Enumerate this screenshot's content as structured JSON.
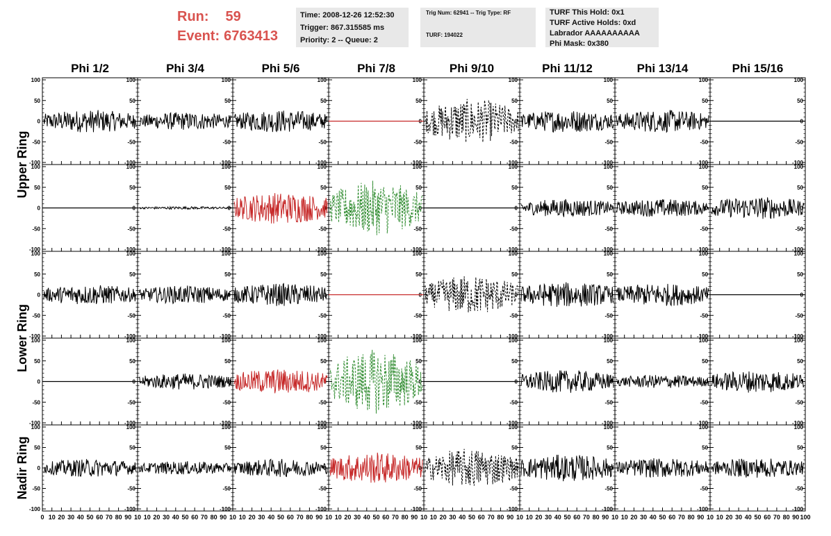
{
  "header": {
    "run_label": "Run:",
    "run_value": "59",
    "event_label": "Event:",
    "event_value": "6763413",
    "time_line": "Time: 2008-12-26 12:52:30",
    "trigger_line": "Trigger: 867.315585 ms",
    "priority_line": "Priority: 2 -- Queue: 2",
    "trig_line": "Trig Num: 62941 -- Trig Type: RF",
    "turf_line": "TURF: 194022",
    "turf_hold_line": "TURF This Hold: 0x1",
    "turf_active_line": "TURF Active Holds: 0xd",
    "labrador_line": "Labrador AAAAAAAAAA",
    "phimask_line": "Phi Mask: 0x380"
  },
  "colors": {
    "header_accent": "#d9534f",
    "trace_black": "#000000",
    "trace_red": "#c62828",
    "trace_green": "#2e8b2e",
    "infobox_bg": "#e8e8e8"
  },
  "chart_data": {
    "type": "line",
    "columns": [
      "Phi 1/2",
      "Phi 3/4",
      "Phi 5/6",
      "Phi 7/8",
      "Phi 9/10",
      "Phi 11/12",
      "Phi 13/14",
      "Phi 15/16"
    ],
    "rows": [
      "Upper Ring",
      "Lower Ring",
      "Nadir Ring"
    ],
    "ylim": [
      -100,
      100
    ],
    "xlim": [
      0,
      100
    ],
    "y_ticks_left": [
      "100",
      "50",
      "0",
      "-50",
      "-100"
    ],
    "y_ticks_right": [
      "100",
      "50",
      "0",
      "-50",
      "-100"
    ],
    "x_ticks": [
      [
        "0",
        "10",
        "20",
        "30",
        "40",
        "50",
        "60",
        "70",
        "80",
        "90",
        "10"
      ],
      [
        "10",
        "20",
        "30",
        "40",
        "50",
        "60",
        "70",
        "80",
        "90",
        "10"
      ],
      [
        "10",
        "20",
        "30",
        "40",
        "50",
        "60",
        "70",
        "80",
        "90",
        "10"
      ],
      [
        "10",
        "20",
        "30",
        "40",
        "50",
        "60",
        "70",
        "80",
        "90",
        "10"
      ],
      [
        "10",
        "20",
        "30",
        "40",
        "50",
        "60",
        "70",
        "80",
        "90",
        "10"
      ],
      [
        "10",
        "20",
        "30",
        "40",
        "50",
        "60",
        "70",
        "80",
        "90",
        "10"
      ],
      [
        "10",
        "20",
        "30",
        "40",
        "50",
        "60",
        "70",
        "80",
        "90",
        "10"
      ],
      [
        "10",
        "20",
        "30",
        "40",
        "50",
        "60",
        "70",
        "80",
        "90",
        "100"
      ]
    ],
    "panels": [
      [
        {
          "color": "black",
          "style": "solid",
          "amp": 25,
          "flat": false
        },
        {
          "color": "black",
          "style": "solid",
          "amp": 20,
          "flat": false
        },
        {
          "color": "black",
          "style": "solid",
          "amp": 25,
          "flat": false
        },
        {
          "color": "red",
          "style": "solid",
          "amp": 0,
          "flat": true
        },
        {
          "color": "black",
          "style": "dashed",
          "amp": 45,
          "flat": false
        },
        {
          "color": "black",
          "style": "solid",
          "amp": 25,
          "flat": false
        },
        {
          "color": "black",
          "style": "solid",
          "amp": 25,
          "flat": false
        },
        {
          "color": "black",
          "style": "solid",
          "amp": 0,
          "flat": true
        }
      ],
      [
        {
          "color": "black",
          "style": "solid",
          "amp": 0,
          "flat": true
        },
        {
          "color": "black",
          "style": "solid",
          "amp": 3,
          "flat": false
        },
        {
          "color": "red",
          "style": "solid",
          "amp": 35,
          "flat": false
        },
        {
          "color": "green",
          "style": "dashed",
          "amp": 55,
          "flat": false
        },
        {
          "color": "black",
          "style": "solid",
          "amp": 0,
          "flat": true
        },
        {
          "color": "black",
          "style": "solid",
          "amp": 20,
          "flat": false
        },
        {
          "color": "black",
          "style": "solid",
          "amp": 20,
          "flat": false
        },
        {
          "color": "black",
          "style": "solid",
          "amp": 25,
          "flat": false
        }
      ],
      [
        {
          "color": "black",
          "style": "solid",
          "amp": 22,
          "flat": false
        },
        {
          "color": "black",
          "style": "solid",
          "amp": 20,
          "flat": false
        },
        {
          "color": "black",
          "style": "solid",
          "amp": 25,
          "flat": false
        },
        {
          "color": "red",
          "style": "solid",
          "amp": 0,
          "flat": true
        },
        {
          "color": "black",
          "style": "dashed",
          "amp": 40,
          "flat": false
        },
        {
          "color": "black",
          "style": "solid",
          "amp": 28,
          "flat": false
        },
        {
          "color": "black",
          "style": "solid",
          "amp": 25,
          "flat": false
        },
        {
          "color": "black",
          "style": "solid",
          "amp": 0,
          "flat": true
        }
      ],
      [
        {
          "color": "black",
          "style": "solid",
          "amp": 0,
          "flat": true
        },
        {
          "color": "black",
          "style": "solid",
          "amp": 18,
          "flat": false
        },
        {
          "color": "red",
          "style": "solid",
          "amp": 28,
          "flat": false
        },
        {
          "color": "green",
          "style": "dashed",
          "amp": 65,
          "flat": false
        },
        {
          "color": "black",
          "style": "solid",
          "amp": 0,
          "flat": true
        },
        {
          "color": "black",
          "style": "solid",
          "amp": 25,
          "flat": false
        },
        {
          "color": "black",
          "style": "solid",
          "amp": 15,
          "flat": false
        },
        {
          "color": "black",
          "style": "solid",
          "amp": 25,
          "flat": false
        }
      ],
      [
        {
          "color": "black",
          "style": "solid",
          "amp": 20,
          "flat": false
        },
        {
          "color": "black",
          "style": "solid",
          "amp": 15,
          "flat": false
        },
        {
          "color": "black",
          "style": "solid",
          "amp": 20,
          "flat": false
        },
        {
          "color": "red",
          "style": "solid",
          "amp": 35,
          "flat": false
        },
        {
          "color": "black",
          "style": "dashed",
          "amp": 40,
          "flat": false
        },
        {
          "color": "black",
          "style": "solid",
          "amp": 30,
          "flat": false
        },
        {
          "color": "black",
          "style": "solid",
          "amp": 22,
          "flat": false
        },
        {
          "color": "black",
          "style": "solid",
          "amp": 22,
          "flat": false
        }
      ]
    ]
  }
}
